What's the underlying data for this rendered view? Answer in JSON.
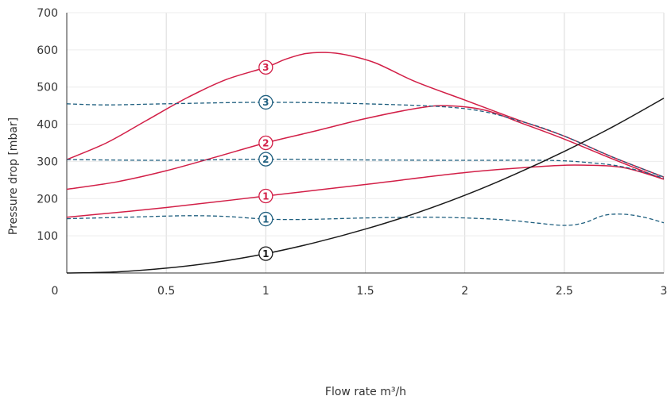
{
  "chart_data": {
    "type": "line",
    "title": "",
    "xlabel": "Flow rate m³/h",
    "ylabel": "Pressure drop [mbar]",
    "xlim": [
      0,
      3
    ],
    "ylim": [
      0,
      700
    ],
    "grid": true,
    "x_ticks": [
      "0",
      "0.5",
      "1",
      "1.5",
      "2",
      "2.5",
      "3"
    ],
    "y_ticks": [
      "100",
      "200",
      "300",
      "400",
      "500",
      "600",
      "700"
    ],
    "colors": {
      "red": "#d21f47",
      "blue": "#1f5f7f",
      "black": "#1a1a1a"
    },
    "series": [
      {
        "key": "red-1",
        "color": "red",
        "dashed": false,
        "marker": "1",
        "points": [
          [
            0,
            150
          ],
          [
            0.5,
            176
          ],
          [
            1,
            207
          ],
          [
            1.5,
            238
          ],
          [
            2,
            270
          ],
          [
            2.4,
            287
          ],
          [
            2.6,
            290
          ],
          [
            2.8,
            283
          ],
          [
            3,
            252
          ]
        ]
      },
      {
        "key": "red-2",
        "color": "red",
        "dashed": false,
        "marker": "2",
        "points": [
          [
            0,
            225
          ],
          [
            0.25,
            245
          ],
          [
            0.5,
            275
          ],
          [
            0.75,
            312
          ],
          [
            1,
            350
          ],
          [
            1.25,
            382
          ],
          [
            1.5,
            415
          ],
          [
            1.75,
            442
          ],
          [
            1.9,
            450
          ],
          [
            2.1,
            438
          ],
          [
            2.3,
            400
          ],
          [
            2.5,
            360
          ],
          [
            2.75,
            305
          ],
          [
            3,
            252
          ]
        ]
      },
      {
        "key": "red-3",
        "color": "red",
        "dashed": false,
        "marker": "3",
        "points": [
          [
            0,
            305
          ],
          [
            0.2,
            350
          ],
          [
            0.4,
            410
          ],
          [
            0.6,
            470
          ],
          [
            0.8,
            520
          ],
          [
            1,
            553
          ],
          [
            1.1,
            575
          ],
          [
            1.2,
            590
          ],
          [
            1.3,
            593
          ],
          [
            1.4,
            587
          ],
          [
            1.55,
            565
          ],
          [
            1.75,
            515
          ],
          [
            2,
            465
          ],
          [
            2.25,
            415
          ],
          [
            2.5,
            368
          ],
          [
            2.75,
            310
          ],
          [
            3,
            258
          ]
        ]
      },
      {
        "key": "blue-1",
        "color": "blue",
        "dashed": true,
        "marker": "1",
        "points": [
          [
            0,
            146
          ],
          [
            0.3,
            150
          ],
          [
            0.6,
            154
          ],
          [
            0.8,
            152
          ],
          [
            1,
            145
          ],
          [
            1.2,
            144
          ],
          [
            1.5,
            148
          ],
          [
            1.8,
            150
          ],
          [
            2,
            148
          ],
          [
            2.2,
            143
          ],
          [
            2.35,
            135
          ],
          [
            2.5,
            128
          ],
          [
            2.6,
            135
          ],
          [
            2.7,
            155
          ],
          [
            2.8,
            158
          ],
          [
            2.9,
            150
          ],
          [
            3,
            135
          ]
        ]
      },
      {
        "key": "blue-2",
        "color": "blue",
        "dashed": true,
        "marker": "2",
        "points": [
          [
            0,
            305
          ],
          [
            0.5,
            303
          ],
          [
            1,
            306
          ],
          [
            1.5,
            304
          ],
          [
            2,
            303
          ],
          [
            2.4,
            303
          ],
          [
            2.6,
            298
          ],
          [
            2.8,
            285
          ],
          [
            3,
            255
          ]
        ]
      },
      {
        "key": "blue-3",
        "color": "blue",
        "dashed": true,
        "marker": "3",
        "points": [
          [
            0,
            455
          ],
          [
            0.2,
            452
          ],
          [
            0.5,
            455
          ],
          [
            1,
            459
          ],
          [
            1.5,
            455
          ],
          [
            2,
            442
          ],
          [
            2.3,
            405
          ],
          [
            2.5,
            368
          ],
          [
            2.75,
            310
          ],
          [
            3,
            258
          ]
        ]
      },
      {
        "key": "black-1",
        "color": "black",
        "dashed": false,
        "marker": "1",
        "points": [
          [
            0,
            0
          ],
          [
            0.25,
            3
          ],
          [
            0.5,
            13
          ],
          [
            0.75,
            29
          ],
          [
            1,
            52
          ],
          [
            1.25,
            82
          ],
          [
            1.5,
            118
          ],
          [
            1.75,
            160
          ],
          [
            2,
            209
          ],
          [
            2.25,
            265
          ],
          [
            2.5,
            327
          ],
          [
            2.75,
            395
          ],
          [
            3,
            470
          ]
        ]
      }
    ],
    "markers": [
      {
        "label": "1",
        "color": "red",
        "x": 1,
        "y": 207
      },
      {
        "label": "2",
        "color": "red",
        "x": 1,
        "y": 350
      },
      {
        "label": "3",
        "color": "red",
        "x": 1,
        "y": 553
      },
      {
        "label": "1",
        "color": "blue",
        "x": 1,
        "y": 145
      },
      {
        "label": "2",
        "color": "blue",
        "x": 1,
        "y": 306
      },
      {
        "label": "3",
        "color": "blue",
        "x": 1,
        "y": 459
      },
      {
        "label": "1",
        "color": "black",
        "x": 1,
        "y": 52
      }
    ]
  }
}
